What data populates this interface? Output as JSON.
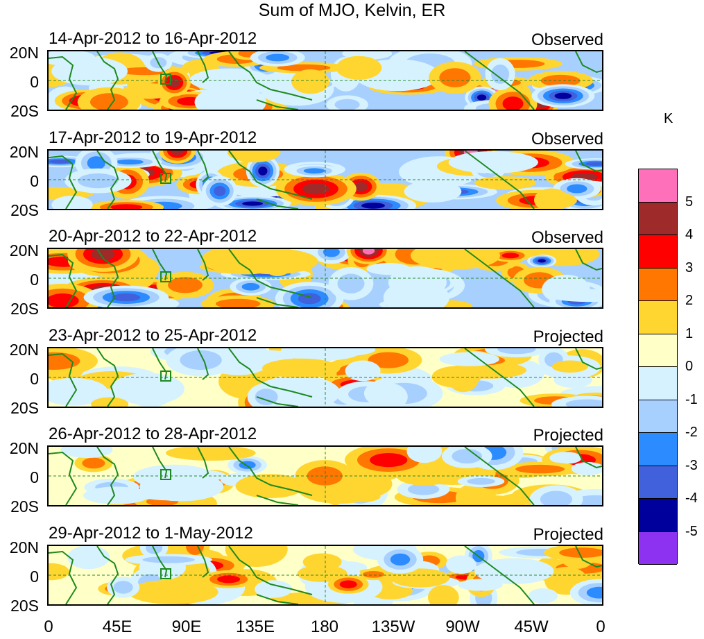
{
  "title": "Sum of MJO, Kelvin, ER",
  "colorbar": {
    "unit": "K",
    "labels": [
      "5",
      "4",
      "3",
      "2",
      "1",
      "0",
      "-1",
      "-2",
      "-3",
      "-4",
      "-5"
    ],
    "colors": [
      "#ff70bb",
      "#9e2a2a",
      "#ff0000",
      "#ff7700",
      "#ffd530",
      "#ffffc8",
      "#d6f2ff",
      "#a8d0ff",
      "#2c8cff",
      "#4060dc",
      "#00009c",
      "#8d32f0"
    ]
  },
  "latitude_labels": [
    "20N",
    "0",
    "20S"
  ],
  "longitude_labels": [
    "0",
    "45E",
    "90E",
    "135E",
    "180",
    "135W",
    "90W",
    "45W",
    "0"
  ],
  "panels": [
    {
      "date_range": "14-Apr-2012 to 16-Apr-2012",
      "status": "Observed"
    },
    {
      "date_range": "17-Apr-2012 to 19-Apr-2012",
      "status": "Observed"
    },
    {
      "date_range": "20-Apr-2012 to 22-Apr-2012",
      "status": "Observed"
    },
    {
      "date_range": "23-Apr-2012 to 25-Apr-2012",
      "status": "Projected"
    },
    {
      "date_range": "26-Apr-2012 to 28-Apr-2012",
      "status": "Projected"
    },
    {
      "date_range": "29-Apr-2012 to 1-May-2012",
      "status": "Projected"
    }
  ]
}
